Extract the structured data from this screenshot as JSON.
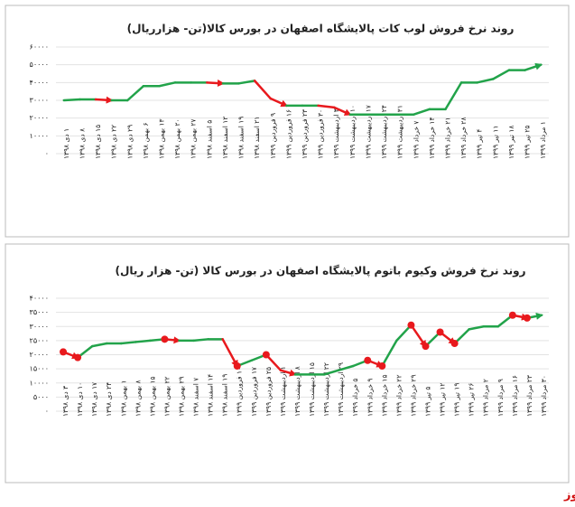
{
  "chart_data": [
    {
      "type": "line",
      "title": "روند نرخ فروش لوب کات پالایشگاه اصفهان در بورس کالا(تن- هزارریال)",
      "categories": [
        "۱ دی ۱۳۹۸",
        "۸ دی ۱۳۹۸",
        "۱۵ دی ۱۳۹۸",
        "۲۲ دی ۱۳۹۸",
        "۲۹ دی ۱۳۹۸",
        "۶ بهمن ۱۳۹۸",
        "۱۳ بهمن ۱۳۹۸",
        "۲۰ بهمن ۱۳۹۸",
        "۲۷ بهمن ۱۳۹۸",
        "۵ اسفند ۱۳۹۸",
        "۱۲ اسفند ۱۳۹۸",
        "۱۹ اسفند ۱۳۹۸",
        "۲۱ اسفند ۱۳۹۸",
        "۹ فروردین ۱۳۹۹",
        "۱۶ فروردین ۱۳۹۹",
        "۲۳ فروردین ۱۳۹۹",
        "۳۰ فروردین ۱۳۹۹",
        "۳ اردیبهشت ۱۳۹۹",
        "۱۰ اردیبهشت ۱۳۹۹",
        "۱۷ اردیبهشت ۱۳۹۹",
        "۲۴ اردیبهشت ۱۳۹۹",
        "۳۱ اردیبهشت ۱۳۹۹",
        "۷ خرداد ۱۳۹۹",
        "۱۴ خرداد ۱۳۹۹",
        "۲۱ خرداد ۱۳۹۹",
        "۲۸ خرداد ۱۳۹۹",
        "۴ تیر ۱۳۹۹",
        "۱۱ تیر ۱۳۹۹",
        "۱۸ تیر ۱۳۹۹",
        "۲۵ تیر ۱۳۹۹",
        "۱ مرداد ۱۳۹۹"
      ],
      "values": [
        30000,
        30500,
        30500,
        30000,
        30000,
        38000,
        38000,
        40000,
        40000,
        40000,
        39500,
        39500,
        41000,
        31000,
        27000,
        27000,
        27000,
        26000,
        22000,
        22000,
        22000,
        22000,
        22000,
        25000,
        25000,
        40000,
        40000,
        42000,
        47000,
        47000,
        50000
      ],
      "ylim": [
        0,
        60000
      ],
      "yticks": [
        {
          "value": 0,
          "label": "۰"
        },
        {
          "value": 10000,
          "label": "۱۰۰۰۰"
        },
        {
          "value": 20000,
          "label": "۲۰۰۰۰"
        },
        {
          "value": 30000,
          "label": "۳۰۰۰۰"
        },
        {
          "value": 40000,
          "label": "۴۰۰۰۰"
        },
        {
          "value": 50000,
          "label": "۵۰۰۰۰"
        },
        {
          "value": 60000,
          "label": "۶۰۰۰۰"
        }
      ],
      "grid": true,
      "up_color": "#22a34a",
      "down_color": "#e8191d",
      "markers": false
    },
    {
      "type": "line",
      "title": "روند نرخ فروش وکیوم باتوم پالایشگاه اصفهان در بورس کالا (تن- هزار ریال)",
      "categories": [
        "۳ دی ۱۳۹۸",
        "۱۰ دی ۱۳۹۸",
        "۱۷ دی ۱۳۹۸",
        "۲۴ دی ۱۳۹۸",
        "۱ بهمن ۱۳۹۸",
        "۸ بهمن ۱۳۹۸",
        "۱۵ بهمن ۱۳۹۸",
        "۲۲ بهمن ۱۳۹۸",
        "۲۹ بهمن ۱۳۹۸",
        "۷ اسفند ۱۳۹۸",
        "۱۴ اسفند ۱۳۹۸",
        "۱۹ اسفند ۱۳۹۸",
        "۱۰ فروردین ۱۳۹۹",
        "۱۷ فروردین ۱۳۹۹",
        "۲۵ فروردین ۱۳۹۹",
        "۱ اردیبهشت ۱۳۹۹",
        "۸ اردیبهشت ۱۳۹۹",
        "۱۵ اردیبهشت ۱۳۹۹",
        "۲۲ اردیبهشت ۱۳۹۹",
        "۲۹ اردیبهشت ۱۳۹۹",
        "۵ خرداد ۱۳۹۹",
        "۹ خرداد ۱۳۹۹",
        "۱۵ خرداد ۱۳۹۹",
        "۲۲ خرداد ۱۳۹۹",
        "۲۹ خرداد ۱۳۹۹",
        "۵ تیر ۱۳۹۹",
        "۱۲ تیر ۱۳۹۹",
        "۱۹ تیر ۱۳۹۹",
        "۲۶ تیر ۱۳۹۹",
        "۲ مرداد ۱۳۹۹",
        "۹ مرداد ۱۳۹۹",
        "۱۶ مرداد ۱۳۹۹",
        "۲۳ مرداد ۱۳۹۹",
        "۳۰ مرداد ۱۳۹۹"
      ],
      "values": [
        21000,
        19000,
        23000,
        24000,
        24000,
        24500,
        25000,
        25500,
        25000,
        25000,
        25500,
        25500,
        16000,
        18000,
        20000,
        14500,
        13000,
        13000,
        13000,
        14500,
        16000,
        18000,
        16000,
        25000,
        30500,
        23000,
        28000,
        24000,
        29000,
        30000,
        30000,
        34000,
        33000,
        34000
      ],
      "ylim": [
        0,
        40000
      ],
      "yticks": [
        {
          "value": 0,
          "label": "۰"
        },
        {
          "value": 5000,
          "label": "۵۰۰۰"
        },
        {
          "value": 10000,
          "label": "۱۰۰۰۰"
        },
        {
          "value": 15000,
          "label": "۱۵۰۰۰"
        },
        {
          "value": 20000,
          "label": "۲۰۰۰۰"
        },
        {
          "value": 25000,
          "label": "۲۵۰۰۰"
        },
        {
          "value": 30000,
          "label": "۳۰۰۰۰"
        },
        {
          "value": 35000,
          "label": "۳۵۰۰۰"
        },
        {
          "value": 40000,
          "label": "۴۰۰۰۰"
        }
      ],
      "grid": true,
      "up_color": "#22a34a",
      "down_color": "#e8191d",
      "markers": true
    }
  ],
  "footer": "بورس نیوز"
}
